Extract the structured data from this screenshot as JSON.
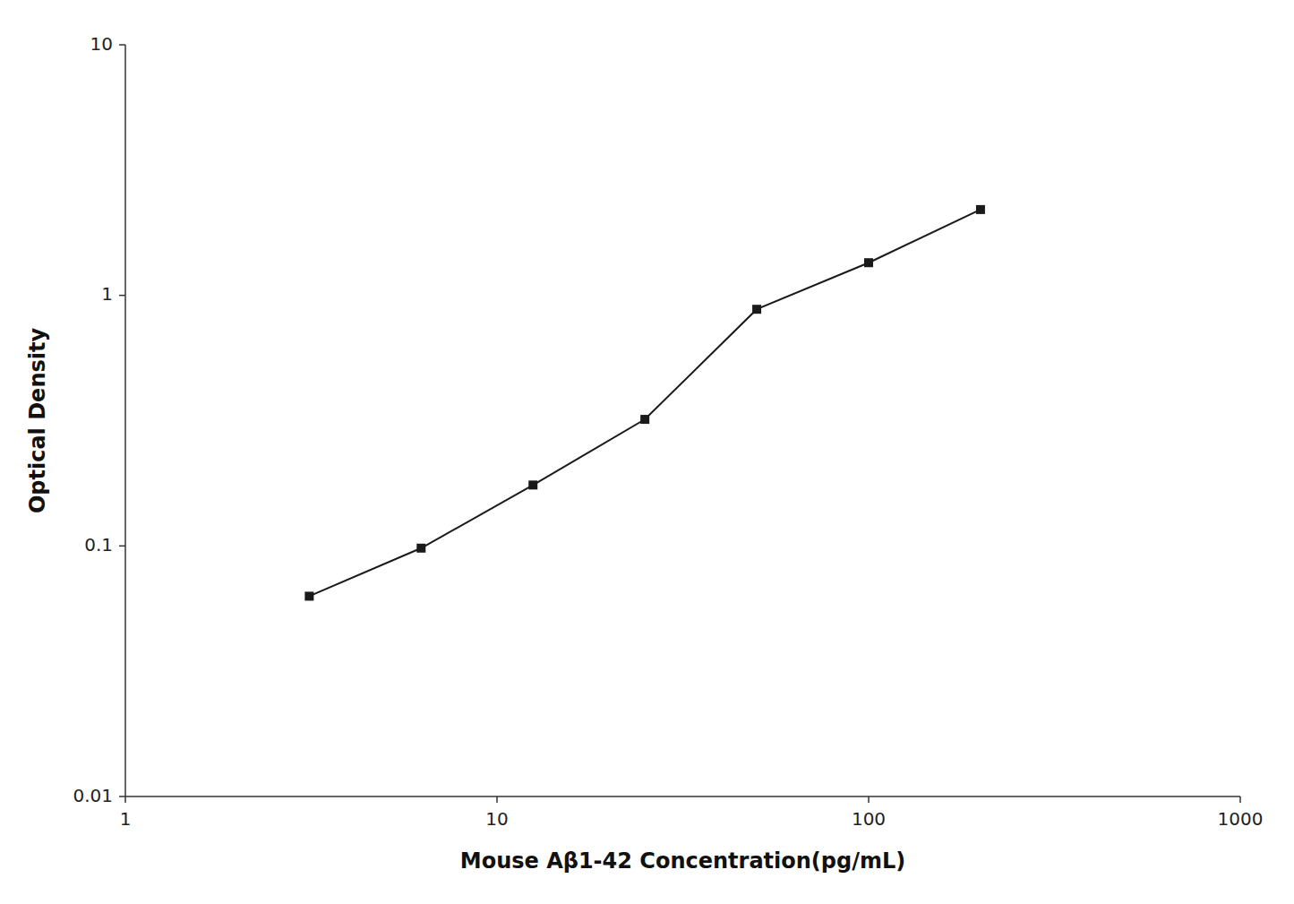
{
  "chart_data": {
    "type": "line",
    "x": [
      3.125,
      6.25,
      12.5,
      25,
      50,
      100,
      200
    ],
    "values": [
      0.063,
      0.098,
      0.175,
      0.32,
      0.88,
      1.35,
      2.2
    ],
    "xlabel": "Mouse Aβ1-42 Concentration(pg/mL)",
    "ylabel": "Optical Density",
    "xlim": [
      1,
      1000
    ],
    "ylim": [
      0.01,
      10
    ],
    "xticks": [
      1,
      10,
      100,
      1000
    ],
    "yticks": [
      0.01,
      0.1,
      1,
      10
    ],
    "log": true,
    "grid": false,
    "color": "#1a1a1a",
    "marker": "square"
  }
}
